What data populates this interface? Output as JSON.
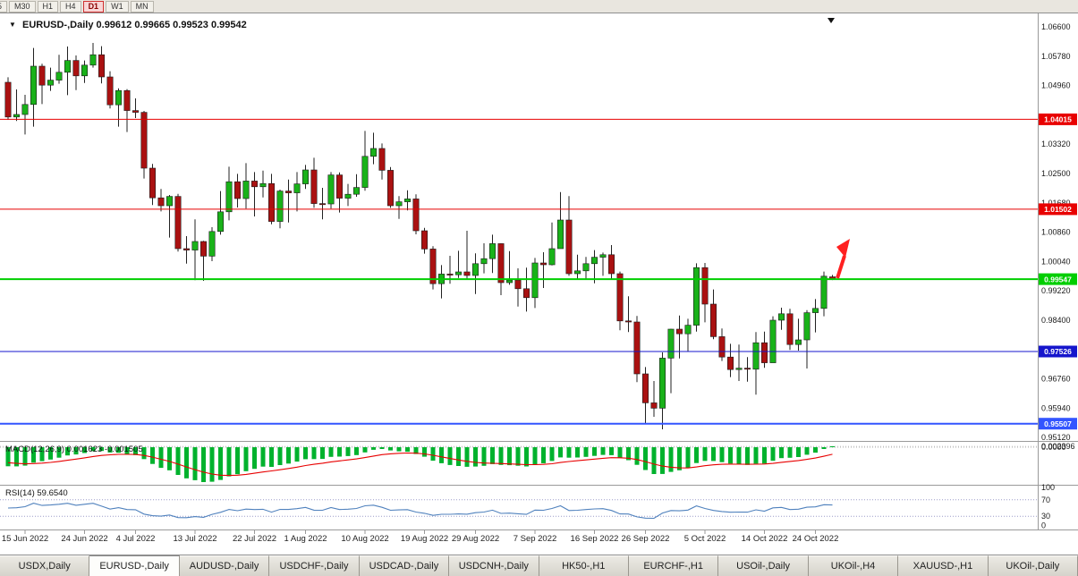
{
  "toolbar": {
    "periods": [
      "5",
      "M30",
      "H1",
      "H4",
      "D1",
      "W1",
      "MN"
    ],
    "active_period": "D1"
  },
  "icons": {
    "symbol_dropdown": "▼",
    "shift_marker": "▼"
  },
  "chart": {
    "symbol_title": "EURUSD-,Daily",
    "ohlc_line": "0.99612 0.99665 0.99523 0.99542"
  },
  "chart_data": {
    "type": "candlestick",
    "symbol": "EURUSD-",
    "timeframe": "Daily",
    "current_bar": {
      "open": 0.99612,
      "high": 0.99665,
      "low": 0.99523,
      "close": 0.99542
    },
    "price_axis": {
      "labels": [
        "1.06600",
        "1.05780",
        "1.04960",
        "1.03320",
        "1.02500",
        "1.01680",
        "1.00860",
        "1.00040",
        "0.99220",
        "0.98400",
        "0.96760",
        "0.95940",
        "0.95120"
      ],
      "range": {
        "max": 1.06975,
        "min": 0.95025
      }
    },
    "horizontal_lines": [
      {
        "price": 1.04015,
        "label": "1.04015",
        "color": "#e80000",
        "width": 1
      },
      {
        "price": 1.01502,
        "label": "1.01502",
        "color": "#e80000",
        "width": 1
      },
      {
        "price": 0.99547,
        "label": "0.99547",
        "color": "#00ce00",
        "width": 2
      },
      {
        "price": 0.97526,
        "label": "0.97526",
        "color": "#1515cc",
        "width": 1
      },
      {
        "price": 0.95507,
        "label": "0.95507",
        "color": "#3355ff",
        "width": 2
      }
    ],
    "candles": [
      [
        1.0505,
        1.0519,
        1.04,
        1.0408
      ],
      [
        1.0408,
        1.0485,
        1.0397,
        1.0415
      ],
      [
        1.0415,
        1.047,
        1.0359,
        1.0443
      ],
      [
        1.0443,
        1.0601,
        1.0381,
        1.055
      ],
      [
        1.055,
        1.0557,
        1.0444,
        1.0497
      ],
      [
        1.0497,
        1.0546,
        1.0481,
        1.0511
      ],
      [
        1.0511,
        1.0582,
        1.0501,
        1.0533
      ],
      [
        1.0533,
        1.0605,
        1.0469,
        1.0566
      ],
      [
        1.0566,
        1.058,
        1.0483,
        1.0523
      ],
      [
        1.0523,
        1.0566,
        1.0503,
        1.0553
      ],
      [
        1.0553,
        1.0615,
        1.0546,
        1.0582
      ],
      [
        1.0582,
        1.0606,
        1.0502,
        1.052
      ],
      [
        1.052,
        1.0536,
        1.0432,
        1.0442
      ],
      [
        1.0442,
        1.0488,
        1.0381,
        1.0482
      ],
      [
        1.0482,
        1.0486,
        1.0366,
        1.0426
      ],
      [
        1.0426,
        1.046,
        1.0405,
        1.0421
      ],
      [
        1.0421,
        1.0425,
        1.0236,
        1.0265
      ],
      [
        1.0265,
        1.0277,
        1.0162,
        1.0182
      ],
      [
        1.0182,
        1.0207,
        1.0144,
        1.016
      ],
      [
        1.016,
        1.019,
        1.0071,
        1.0186
      ],
      [
        1.0186,
        1.0193,
        1.0032,
        1.004
      ],
      [
        1.004,
        1.0075,
        0.9998,
        1.0036
      ],
      [
        1.0036,
        1.0122,
        0.9952,
        1.006
      ],
      [
        1.006,
        1.0062,
        0.995,
        1.0019
      ],
      [
        1.0019,
        1.01,
        1.0005,
        1.0088
      ],
      [
        1.0088,
        1.0201,
        1.0079,
        1.0143
      ],
      [
        1.0143,
        1.0269,
        1.0119,
        1.0227
      ],
      [
        1.0227,
        1.0249,
        1.0155,
        1.018
      ],
      [
        1.018,
        1.0279,
        1.0152,
        1.0229
      ],
      [
        1.0229,
        1.0254,
        1.013,
        1.0213
      ],
      [
        1.0213,
        1.0258,
        1.0183,
        1.0222
      ],
      [
        1.0222,
        1.0249,
        1.0108,
        1.0116
      ],
      [
        1.0116,
        1.0205,
        1.0097,
        1.0201
      ],
      [
        1.0201,
        1.0233,
        1.0113,
        1.0196
      ],
      [
        1.0196,
        1.0254,
        1.0144,
        1.0221
      ],
      [
        1.0221,
        1.0274,
        1.0207,
        1.026
      ],
      [
        1.026,
        1.0294,
        1.0154,
        1.0166
      ],
      [
        1.0166,
        1.021,
        1.0122,
        1.0165
      ],
      [
        1.0165,
        1.0254,
        1.0152,
        1.0246
      ],
      [
        1.0246,
        1.0253,
        1.0141,
        1.0181
      ],
      [
        1.0181,
        1.0221,
        1.0159,
        1.0192
      ],
      [
        1.0192,
        1.0248,
        1.0185,
        1.0211
      ],
      [
        1.0211,
        1.0369,
        1.0202,
        1.0298
      ],
      [
        1.0298,
        1.0364,
        1.0276,
        1.032
      ],
      [
        1.032,
        1.0334,
        1.0233,
        1.0259
      ],
      [
        1.0259,
        1.0268,
        1.0154,
        1.016
      ],
      [
        1.016,
        1.0187,
        1.0123,
        1.0171
      ],
      [
        1.0171,
        1.0203,
        1.0147,
        1.0179
      ],
      [
        1.0179,
        1.0192,
        1.008,
        1.009
      ],
      [
        1.009,
        1.0098,
        1.0026,
        1.0039
      ],
      [
        1.0039,
        1.0047,
        0.9926,
        0.9942
      ],
      [
        0.9942,
        0.9994,
        0.9901,
        0.9969
      ],
      [
        0.9969,
        1.002,
        0.9942,
        0.9967
      ],
      [
        0.9967,
        1.0034,
        0.9958,
        0.9975
      ],
      [
        0.9975,
        1.009,
        0.9956,
        0.9965
      ],
      [
        0.9965,
        1.0027,
        0.9913,
        0.9998
      ],
      [
        0.9998,
        1.0055,
        0.9971,
        1.0012
      ],
      [
        1.0012,
        1.0079,
        0.9972,
        1.0054
      ],
      [
        1.0054,
        1.0055,
        0.991,
        0.9945
      ],
      [
        0.9945,
        1.0033,
        0.9939,
        0.9952
      ],
      [
        0.9952,
        0.9985,
        0.9878,
        0.9928
      ],
      [
        0.9928,
        0.9987,
        0.9864,
        0.9903
      ],
      [
        0.9903,
        1.0014,
        0.9874,
        1.0
      ],
      [
        1.0,
        1.003,
        0.993,
        0.9995
      ],
      [
        0.9995,
        1.0113,
        0.9993,
        1.004
      ],
      [
        1.004,
        1.0198,
        1.004,
        1.012
      ],
      [
        1.012,
        1.0187,
        0.9964,
        0.997
      ],
      [
        0.997,
        1.0023,
        0.9954,
        0.9978
      ],
      [
        0.9978,
        1.0017,
        0.9955,
        0.9998
      ],
      [
        0.9998,
        1.0036,
        0.9943,
        1.0016
      ],
      [
        1.0016,
        1.0029,
        0.9964,
        1.0023
      ],
      [
        1.0023,
        1.005,
        0.9955,
        0.997
      ],
      [
        0.997,
        0.9976,
        0.9812,
        0.9838
      ],
      [
        0.9838,
        0.9907,
        0.9807,
        0.9835
      ],
      [
        0.9835,
        0.9852,
        0.9667,
        0.969
      ],
      [
        0.969,
        0.9709,
        0.9551,
        0.9609
      ],
      [
        0.9609,
        0.967,
        0.957,
        0.9594
      ],
      [
        0.9594,
        0.975,
        0.9535,
        0.9734
      ],
      [
        0.9734,
        0.9816,
        0.9636,
        0.9815
      ],
      [
        0.9815,
        0.9853,
        0.9733,
        0.9802
      ],
      [
        0.9802,
        0.9844,
        0.9752,
        0.9826
      ],
      [
        0.9826,
        0.9999,
        0.9808,
        0.9987
      ],
      [
        0.9987,
        1.0,
        0.9834,
        0.9885
      ],
      [
        0.9885,
        0.9926,
        0.9787,
        0.9794
      ],
      [
        0.9794,
        0.9817,
        0.9726,
        0.9737
      ],
      [
        0.9737,
        0.9774,
        0.9681,
        0.9702
      ],
      [
        0.9702,
        0.9772,
        0.967,
        0.9706
      ],
      [
        0.9706,
        0.9737,
        0.9668,
        0.9703
      ],
      [
        0.9703,
        0.9807,
        0.9632,
        0.9777
      ],
      [
        0.9777,
        0.9808,
        0.9707,
        0.9721
      ],
      [
        0.9721,
        0.9851,
        0.9721,
        0.984
      ],
      [
        0.984,
        0.9875,
        0.9813,
        0.9858
      ],
      [
        0.9858,
        0.9872,
        0.9757,
        0.9772
      ],
      [
        0.9772,
        0.9844,
        0.9755,
        0.9785
      ],
      [
        0.9785,
        0.9868,
        0.9705,
        0.9861
      ],
      [
        0.9861,
        0.9899,
        0.9806,
        0.9873
      ],
      [
        0.9873,
        0.9976,
        0.9851,
        0.9963
      ],
      [
        0.99612,
        0.99665,
        0.99523,
        0.99542
      ]
    ],
    "x_ticks": [
      {
        "i": 2,
        "label": "15 Jun 2022"
      },
      {
        "i": 9,
        "label": "24 Jun 2022"
      },
      {
        "i": 15,
        "label": "4 Jul 2022"
      },
      {
        "i": 22,
        "label": "13 Jul 2022"
      },
      {
        "i": 29,
        "label": "22 Jul 2022"
      },
      {
        "i": 35,
        "label": "1 Aug 2022"
      },
      {
        "i": 42,
        "label": "10 Aug 2022"
      },
      {
        "i": 49,
        "label": "19 Aug 2022"
      },
      {
        "i": 55,
        "label": "29 Aug 2022"
      },
      {
        "i": 62,
        "label": "7 Sep 2022"
      },
      {
        "i": 69,
        "label": "16 Sep 2022"
      },
      {
        "i": 75,
        "label": "26 Sep 2022"
      },
      {
        "i": 82,
        "label": "5 Oct 2022"
      },
      {
        "i": 89,
        "label": "14 Oct 2022"
      },
      {
        "i": 95,
        "label": "24 Oct 2022"
      }
    ],
    "indicators": {
      "macd": {
        "name": "MACD(12,26,9)",
        "values_text": "0.001623 -0.001505",
        "params": [
          12,
          26,
          9
        ],
        "axis_labels": [
          "0.002396",
          "0.0000"
        ],
        "histogram_color": "#00b22d",
        "signal_color": "#e80000"
      },
      "rsi": {
        "name": "RSI(14)",
        "value_text": "59.6540",
        "period": 14,
        "axis_labels": [
          "100",
          "70",
          "30",
          "0"
        ],
        "levels": [
          70,
          30
        ],
        "line_color": "#4f81bd"
      }
    },
    "annotations": {
      "trend_arrow": {
        "direction": "up",
        "color": "#ff2020"
      }
    },
    "style": {
      "bull_color": "#19b219",
      "bear_color": "#aa1111",
      "wick_color": "#222222",
      "border_color": "#9a9a9a",
      "axis_text_color": "#1a1a1a"
    }
  },
  "tabs": {
    "items": [
      "USDX,Daily",
      "EURUSD-,Daily",
      "AUDUSD-,Daily",
      "USDCHF-,Daily",
      "USDCAD-,Daily",
      "USDCNH-,Daily",
      "HK50-,H1",
      "EURCHF-,H1",
      "USOil-,Daily",
      "UKOil-,H4",
      "XAUUSD-,H1",
      "UKOil-,Daily"
    ],
    "active": "EURUSD-,Daily"
  }
}
